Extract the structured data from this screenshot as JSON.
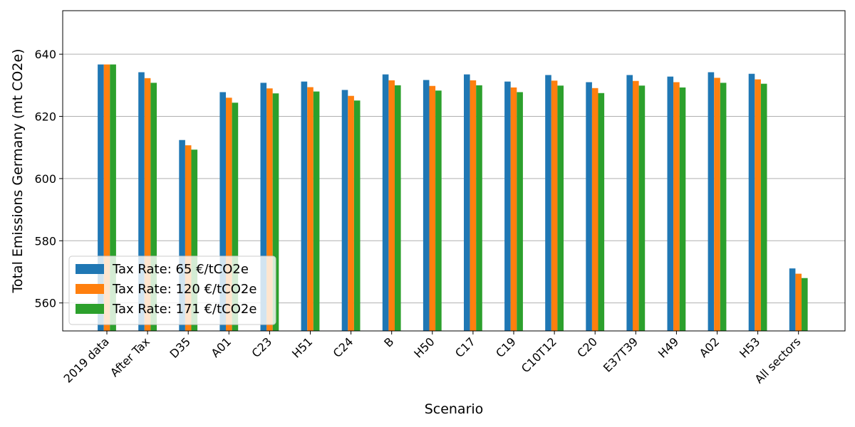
{
  "chart_data": {
    "type": "bar",
    "title": "",
    "xlabel": "Scenario",
    "ylabel": "Total Emissions Germany (mt CO2e)",
    "ylim": [
      551,
      654
    ],
    "yticks": [
      560,
      580,
      600,
      620,
      640
    ],
    "grid": "y",
    "legend_position": "lower-left",
    "categories": [
      "2019 data",
      "After Tax",
      "D35",
      "A01",
      "C23",
      "H51",
      "C24",
      "B",
      "H50",
      "C17",
      "C19",
      "C10T12",
      "C20",
      "E37T39",
      "H49",
      "A02",
      "H53",
      "All sectors"
    ],
    "series": [
      {
        "name": "Tax Rate: 65 €/tCO2e",
        "color": "#1f77b4",
        "values": [
          636.7,
          634.2,
          612.4,
          627.8,
          630.8,
          631.2,
          628.5,
          633.5,
          631.7,
          633.5,
          631.2,
          633.3,
          631.0,
          633.3,
          632.8,
          634.2,
          633.7,
          571.1
        ]
      },
      {
        "name": "Tax Rate: 120 €/tCO2e",
        "color": "#ff7f0e",
        "values": [
          636.7,
          632.3,
          610.7,
          626.0,
          629.0,
          629.4,
          626.6,
          631.6,
          629.8,
          631.6,
          629.3,
          631.5,
          629.1,
          631.4,
          631.0,
          632.4,
          631.9,
          569.4
        ]
      },
      {
        "name": "Tax Rate: 171 €/tCO2e",
        "color": "#2ca02c",
        "values": [
          636.7,
          630.8,
          609.3,
          624.4,
          627.4,
          628.0,
          625.1,
          630.0,
          628.3,
          630.0,
          627.8,
          629.9,
          627.5,
          629.9,
          629.3,
          630.8,
          630.5,
          568.0
        ]
      }
    ]
  }
}
